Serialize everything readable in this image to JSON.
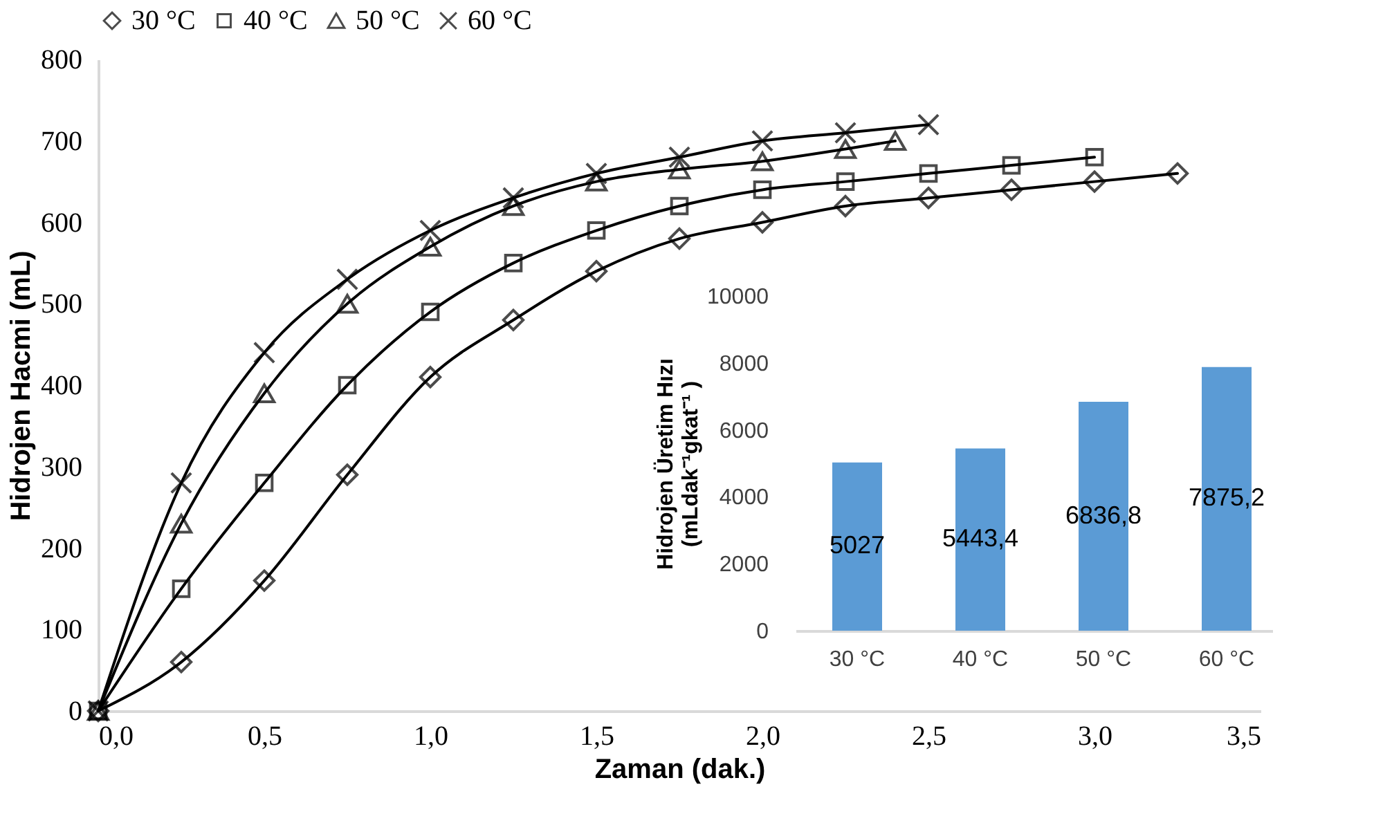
{
  "chart_data": [
    {
      "type": "line",
      "xlabel": "Zaman (dak.)",
      "ylabel": "Hidrojen Hacmi (mL)",
      "xlim": [
        0,
        3.5
      ],
      "xticks": [
        {
          "value": 0,
          "label": "0,0"
        },
        {
          "value": 0.5,
          "label": "0,5"
        },
        {
          "value": 1,
          "label": "1,0"
        },
        {
          "value": 1.5,
          "label": "1,5"
        },
        {
          "value": 2,
          "label": "2,0"
        },
        {
          "value": 2.5,
          "label": "2,5"
        },
        {
          "value": 3,
          "label": "3,0"
        },
        {
          "value": 3.5,
          "label": "3,5"
        }
      ],
      "ylim": [
        0,
        800
      ],
      "yticks": [
        0,
        100,
        200,
        300,
        400,
        500,
        600,
        700,
        800
      ],
      "grid": false,
      "legend": "top",
      "line_style": "solid",
      "series": [
        {
          "name": "30 °C",
          "color": "#000000",
          "marker": "diamond",
          "x": [
            0,
            0.25,
            0.5,
            0.75,
            1.0,
            1.25,
            1.5,
            1.75,
            2.0,
            2.25,
            2.5,
            2.75,
            3.0,
            3.25
          ],
          "values": [
            0,
            60,
            160,
            290,
            410,
            480,
            540,
            580,
            600,
            620,
            630,
            640,
            650,
            660
          ]
        },
        {
          "name": "40 °C",
          "color": "#000000",
          "marker": "square",
          "x": [
            0,
            0.25,
            0.5,
            0.75,
            1.0,
            1.25,
            1.5,
            1.75,
            2.0,
            2.25,
            2.5,
            2.75,
            3.0
          ],
          "values": [
            0,
            150,
            280,
            400,
            490,
            550,
            590,
            620,
            640,
            650,
            660,
            670,
            680
          ]
        },
        {
          "name": "50 °C",
          "color": "#000000",
          "marker": "triangle",
          "x": [
            0,
            0.25,
            0.5,
            0.75,
            1.0,
            1.25,
            1.5,
            1.75,
            2.0,
            2.25,
            2.4
          ],
          "values": [
            0,
            230,
            390,
            500,
            570,
            620,
            650,
            665,
            675,
            690,
            700
          ]
        },
        {
          "name": "60 °C",
          "color": "#000000",
          "marker": "cross",
          "x": [
            0,
            0.25,
            0.5,
            0.75,
            1.0,
            1.25,
            1.5,
            1.75,
            2.0,
            2.25,
            2.5
          ],
          "values": [
            0,
            280,
            440,
            530,
            590,
            630,
            660,
            680,
            700,
            710,
            720
          ]
        }
      ]
    },
    {
      "type": "bar",
      "ylabel": "Hidrojen Üretim Hızı\n(mLdak⁻¹gkat⁻¹ )",
      "categories": [
        "30 °C",
        "40 °C",
        "50 °C",
        "60 °C"
      ],
      "values": [
        5027,
        5443.4,
        6836.8,
        7875.2
      ],
      "value_labels": [
        "5027",
        "5443,4",
        "6836,8",
        "7875,2"
      ],
      "color": "#5b9bd5",
      "ylim": [
        0,
        10000
      ],
      "yticks": [
        0,
        2000,
        4000,
        6000,
        8000,
        10000
      ],
      "grid": false
    }
  ]
}
